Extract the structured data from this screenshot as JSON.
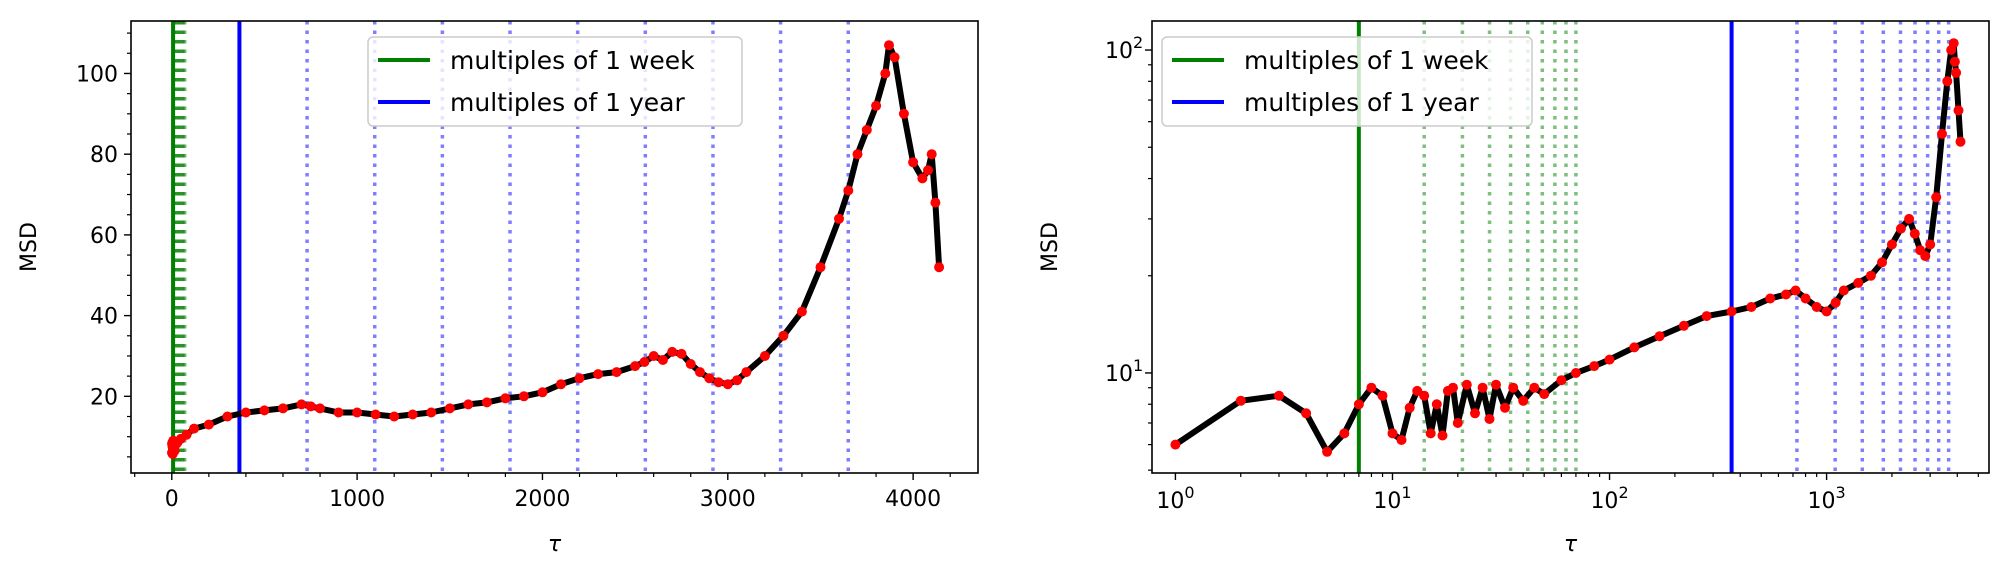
{
  "chart_data": [
    {
      "type": "line",
      "xlabel": "τ",
      "ylabel": "MSD",
      "xscale": "linear",
      "yscale": "linear",
      "xlim": [
        -220,
        4350
      ],
      "ylim": [
        1,
        113
      ],
      "xticks": [
        0,
        1000,
        2000,
        3000,
        4000
      ],
      "xtick_labels": [
        "0",
        "1000",
        "2000",
        "3000",
        "4000"
      ],
      "yticks": [
        20,
        40,
        60,
        80,
        100
      ],
      "ytick_labels": [
        "20",
        "40",
        "60",
        "80",
        "100"
      ],
      "legend_position": "upper-center",
      "legend": [
        {
          "label": "multiples of 1 week",
          "color": "#008000"
        },
        {
          "label": "multiples of 1 year",
          "color": "#0000ff"
        }
      ],
      "vlines_solid": [
        {
          "x": 7,
          "color": "#008000"
        },
        {
          "x": 365,
          "color": "#0000ff"
        }
      ],
      "vlines_dotted": {
        "week_multiples": [
          14,
          21,
          28,
          35,
          42,
          49,
          56,
          63,
          70
        ],
        "year_multiples": [
          730,
          1095,
          1460,
          1825,
          2190,
          2555,
          2920,
          3285,
          3650
        ],
        "week_color": "#008000",
        "year_color": "#0000ff"
      },
      "series": [
        {
          "line_color": "#000000",
          "marker_color": "#ff0000",
          "x": [
            1,
            2,
            3,
            4,
            5,
            6,
            7,
            8,
            10,
            12,
            15,
            20,
            30,
            50,
            80,
            120,
            200,
            300,
            400,
            500,
            600,
            700,
            750,
            800,
            900,
            1000,
            1100,
            1200,
            1300,
            1400,
            1500,
            1600,
            1700,
            1800,
            1900,
            2000,
            2100,
            2200,
            2300,
            2400,
            2500,
            2550,
            2600,
            2650,
            2700,
            2750,
            2800,
            2850,
            2900,
            2950,
            3000,
            3050,
            3100,
            3200,
            3300,
            3400,
            3500,
            3600,
            3650,
            3700,
            3750,
            3800,
            3850,
            3870,
            3900,
            3950,
            4000,
            4050,
            4080,
            4100,
            4120,
            4140
          ],
          "y": [
            6.0,
            8.2,
            8.5,
            7.5,
            5.7,
            6.5,
            8.0,
            9.0,
            6.3,
            8.5,
            6.5,
            8.0,
            8.5,
            9.5,
            10.5,
            12,
            13,
            15,
            16,
            16.5,
            17,
            18,
            17.5,
            17,
            16,
            16,
            15.5,
            15,
            15.5,
            16,
            17,
            18,
            18.5,
            19.5,
            20,
            21,
            23,
            24.5,
            25.5,
            26,
            27.5,
            28.5,
            30,
            29,
            31,
            30.5,
            28,
            26,
            24.5,
            23.5,
            23,
            24,
            26,
            30,
            35,
            41,
            52,
            64,
            71,
            80,
            86,
            92,
            100,
            107,
            104,
            90,
            78,
            74,
            76,
            80,
            68,
            52
          ]
        }
      ]
    },
    {
      "type": "line",
      "xlabel": "τ",
      "ylabel": "MSD",
      "xscale": "log",
      "yscale": "log",
      "xlim": [
        0.78,
        5600
      ],
      "ylim": [
        4.9,
        123
      ],
      "xticks": [
        1,
        10,
        100,
        1000
      ],
      "xtick_labels": [
        {
          "base": "10",
          "exp": "0"
        },
        {
          "base": "10",
          "exp": "1"
        },
        {
          "base": "10",
          "exp": "2"
        },
        {
          "base": "10",
          "exp": "3"
        }
      ],
      "yticks": [
        10,
        100
      ],
      "ytick_labels": [
        {
          "base": "10",
          "exp": "1"
        },
        {
          "base": "10",
          "exp": "2"
        }
      ],
      "legend_position": "upper-left",
      "legend": [
        {
          "label": "multiples of 1 week",
          "color": "#008000"
        },
        {
          "label": "multiples of 1 year",
          "color": "#0000ff"
        }
      ],
      "vlines_solid": [
        {
          "x": 7,
          "color": "#008000"
        },
        {
          "x": 365,
          "color": "#0000ff"
        }
      ],
      "vlines_dotted": {
        "week_multiples": [
          14,
          21,
          28,
          35,
          42,
          49,
          56,
          63,
          70
        ],
        "year_multiples": [
          730,
          1095,
          1460,
          1825,
          2190,
          2555,
          2920,
          3285,
          3650
        ],
        "week_color": "#008000",
        "year_color": "#0000ff"
      },
      "series": [
        {
          "line_color": "#000000",
          "marker_color": "#ff0000",
          "x": [
            1,
            2,
            3,
            4,
            5,
            6,
            7,
            8,
            9,
            10,
            11,
            12,
            13,
            14,
            15,
            16,
            17,
            18,
            19,
            20,
            22,
            24,
            26,
            28,
            30,
            33,
            36,
            40,
            45,
            50,
            60,
            70,
            85,
            100,
            130,
            170,
            220,
            280,
            365,
            450,
            550,
            650,
            720,
            800,
            900,
            1000,
            1100,
            1200,
            1400,
            1600,
            1800,
            2000,
            2200,
            2400,
            2550,
            2700,
            2850,
            3000,
            3200,
            3400,
            3600,
            3750,
            3850,
            3900,
            3950,
            4050,
            4140
          ],
          "y": [
            6.0,
            8.2,
            8.5,
            7.5,
            5.7,
            6.5,
            8.0,
            9.0,
            8.5,
            6.5,
            6.2,
            7.8,
            8.8,
            8.5,
            6.5,
            8.0,
            6.4,
            8.8,
            9.0,
            7.0,
            9.2,
            7.5,
            9.0,
            7.2,
            9.2,
            7.8,
            9.0,
            8.2,
            9.0,
            8.6,
            9.5,
            10.0,
            10.5,
            11.0,
            12.0,
            13.0,
            14.0,
            15.0,
            15.5,
            16.0,
            17.0,
            17.5,
            18.0,
            17.0,
            16.0,
            15.5,
            16.5,
            18.0,
            19.0,
            20.0,
            22.0,
            25.0,
            28.0,
            30.0,
            27.0,
            24.0,
            23.0,
            25.0,
            35.0,
            55.0,
            80.0,
            100.0,
            105.0,
            92.0,
            85.0,
            65.0,
            52.0
          ]
        }
      ]
    }
  ]
}
